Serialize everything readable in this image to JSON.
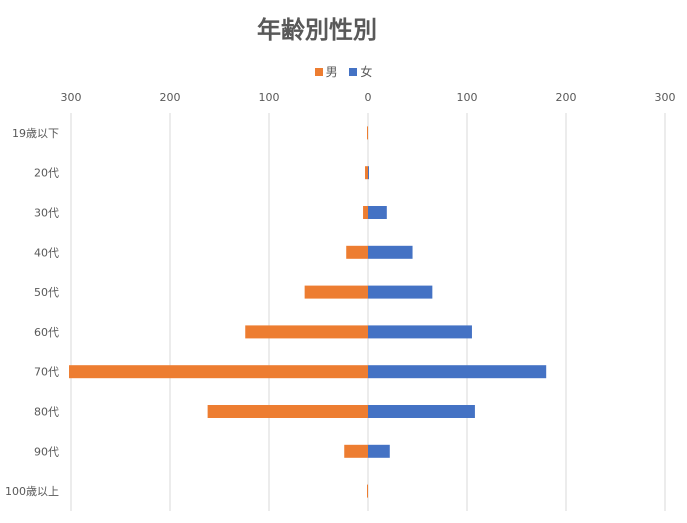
{
  "chart_data": {
    "type": "bar",
    "orientation": "horizontal",
    "title": "年齢別性別",
    "categories": [
      "19歳以下",
      "20代",
      "30代",
      "40代",
      "50代",
      "60代",
      "70代",
      "80代",
      "90代",
      "100歳以上"
    ],
    "series": [
      {
        "name": "男",
        "color": "#ED7D31",
        "values": [
          1,
          3,
          5,
          22,
          64,
          124,
          302,
          162,
          24,
          1
        ]
      },
      {
        "name": "女",
        "color": "#4472C4",
        "values": [
          0,
          1,
          19,
          45,
          65,
          105,
          180,
          108,
          22,
          0
        ]
      }
    ],
    "xlim": [
      -300,
      300
    ],
    "xticks": [
      -300,
      -200,
      -100,
      0,
      100,
      200,
      300
    ],
    "xtick_labels": [
      "300",
      "200",
      "100",
      "0",
      "100",
      "200",
      "300"
    ],
    "grid": true,
    "legend_position": "top"
  }
}
